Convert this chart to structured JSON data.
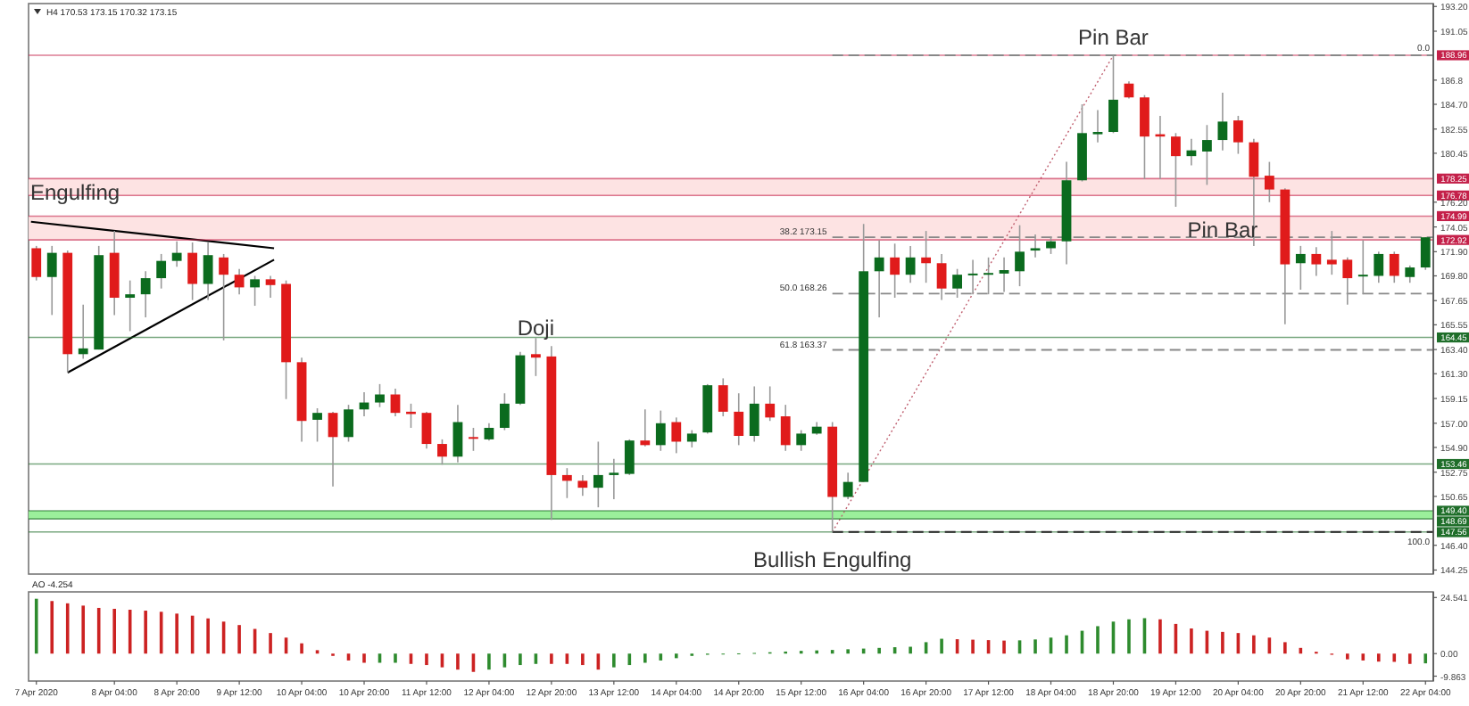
{
  "chart_data": [
    {
      "type": "candlestick",
      "title": "H4 170.53 173.15 170.32 173.15",
      "categories": [
        null,
        null,
        null,
        null,
        null,
        null,
        null,
        null,
        null,
        null,
        null,
        null,
        null,
        null,
        null,
        null,
        null,
        null,
        null,
        null,
        null,
        null,
        null,
        null,
        null,
        null,
        null,
        null,
        null,
        null,
        null,
        null,
        null,
        null,
        null,
        null,
        null,
        null,
        null,
        null,
        null,
        null,
        null,
        null,
        null,
        null,
        null,
        null,
        null,
        null,
        null,
        null,
        null,
        null,
        null,
        null,
        null,
        null,
        null,
        null,
        null,
        null,
        null,
        null,
        null,
        null,
        null,
        null,
        null,
        null,
        null,
        null,
        null,
        null,
        null,
        null,
        null,
        null,
        null,
        null,
        null,
        null,
        null,
        null,
        null,
        null,
        null,
        null,
        null,
        null
      ],
      "ohlc": [
        [
          172.2,
          172.4,
          169.4,
          169.7
        ],
        [
          169.7,
          172.4,
          166.4,
          171.8
        ],
        [
          171.8,
          172.0,
          161.4,
          163.0
        ],
        [
          163.0,
          167.3,
          162.6,
          163.5
        ],
        [
          163.4,
          172.4,
          163.4,
          171.6
        ],
        [
          171.8,
          173.7,
          166.4,
          167.9
        ],
        [
          167.9,
          169.4,
          165.0,
          168.2
        ],
        [
          168.2,
          170.2,
          166.2,
          169.6
        ],
        [
          169.6,
          171.7,
          168.7,
          171.1
        ],
        [
          171.1,
          172.8,
          170.6,
          171.8
        ],
        [
          171.8,
          172.7,
          167.7,
          169.1
        ],
        [
          169.1,
          172.7,
          167.7,
          171.6
        ],
        [
          171.4,
          171.7,
          164.2,
          169.9
        ],
        [
          169.9,
          170.4,
          168.2,
          168.8
        ],
        [
          168.8,
          169.8,
          167.2,
          169.5
        ],
        [
          169.5,
          169.8,
          167.9,
          169.0
        ],
        [
          169.1,
          169.4,
          159.1,
          162.3
        ],
        [
          162.3,
          162.7,
          155.4,
          157.2
        ],
        [
          157.3,
          158.3,
          155.4,
          157.9
        ],
        [
          157.9,
          158.0,
          151.5,
          155.8
        ],
        [
          155.8,
          158.6,
          155.4,
          158.2
        ],
        [
          158.2,
          159.7,
          157.6,
          158.8
        ],
        [
          158.8,
          160.4,
          158.4,
          159.5
        ],
        [
          159.5,
          160.0,
          157.6,
          157.9
        ],
        [
          158.0,
          158.7,
          156.6,
          157.8
        ],
        [
          157.9,
          158.0,
          154.8,
          155.2
        ],
        [
          155.2,
          155.6,
          153.4,
          154.1
        ],
        [
          154.1,
          158.6,
          153.6,
          157.1
        ],
        [
          155.8,
          156.6,
          154.6,
          155.7
        ],
        [
          155.6,
          157.0,
          155.5,
          156.6
        ],
        [
          156.6,
          159.6,
          156.4,
          158.7
        ],
        [
          158.7,
          163.2,
          158.6,
          162.9
        ],
        [
          163.0,
          164.4,
          161.1,
          162.7
        ],
        [
          162.8,
          163.7,
          148.6,
          152.5
        ],
        [
          152.5,
          153.1,
          150.5,
          152.0
        ],
        [
          152.0,
          152.5,
          150.7,
          151.4
        ],
        [
          151.4,
          155.4,
          149.7,
          152.5
        ],
        [
          152.5,
          153.9,
          150.4,
          152.7
        ],
        [
          152.6,
          155.6,
          152.5,
          155.5
        ],
        [
          155.5,
          158.2,
          155.0,
          155.1
        ],
        [
          155.1,
          158.1,
          154.6,
          157.0
        ],
        [
          157.1,
          157.5,
          154.4,
          155.4
        ],
        [
          155.4,
          156.4,
          154.9,
          156.1
        ],
        [
          156.2,
          160.4,
          156.1,
          160.3
        ],
        [
          160.3,
          160.9,
          157.6,
          158.0
        ],
        [
          158.0,
          159.6,
          155.1,
          155.9
        ],
        [
          155.9,
          160.2,
          155.4,
          158.7
        ],
        [
          158.7,
          160.2,
          157.2,
          157.5
        ],
        [
          157.6,
          158.6,
          154.6,
          155.1
        ],
        [
          155.1,
          156.4,
          154.6,
          156.1
        ],
        [
          156.1,
          157.1,
          156.0,
          156.7
        ],
        [
          156.7,
          157.1,
          147.56,
          150.6
        ],
        [
          150.6,
          152.7,
          150.4,
          151.9
        ],
        [
          151.9,
          174.3,
          151.9,
          170.2
        ],
        [
          170.2,
          172.9,
          166.2,
          171.4
        ],
        [
          171.4,
          172.6,
          167.9,
          169.9
        ],
        [
          169.9,
          172.4,
          169.2,
          171.4
        ],
        [
          171.4,
          173.7,
          169.2,
          170.9
        ],
        [
          170.9,
          171.7,
          167.7,
          168.7
        ],
        [
          168.7,
          170.4,
          167.9,
          169.9
        ],
        [
          169.9,
          171.2,
          168.2,
          170.0
        ],
        [
          169.95,
          171.4,
          168.2,
          170.05
        ],
        [
          170.0,
          171.4,
          168.4,
          170.3
        ],
        [
          170.2,
          174.2,
          168.9,
          171.9
        ],
        [
          172.0,
          173.4,
          171.4,
          172.2
        ],
        [
          172.2,
          173.2,
          171.7,
          172.8
        ],
        [
          172.8,
          179.7,
          170.8,
          178.1
        ],
        [
          178.1,
          184.7,
          178.0,
          182.2
        ],
        [
          182.1,
          184.2,
          181.4,
          182.3
        ],
        [
          182.3,
          188.96,
          182.2,
          185.1
        ],
        [
          186.5,
          186.7,
          185.2,
          185.3
        ],
        [
          185.3,
          185.5,
          178.2,
          181.9
        ],
        [
          182.1,
          183.7,
          178.2,
          181.9
        ],
        [
          181.9,
          182.2,
          175.8,
          180.2
        ],
        [
          180.2,
          181.7,
          179.4,
          180.7
        ],
        [
          180.6,
          182.9,
          177.7,
          181.6
        ],
        [
          181.6,
          185.7,
          180.7,
          183.2
        ],
        [
          183.3,
          183.7,
          180.4,
          181.4
        ],
        [
          181.4,
          181.7,
          172.4,
          178.4
        ],
        [
          178.5,
          179.7,
          176.2,
          177.3
        ],
        [
          177.3,
          177.4,
          165.6,
          170.8
        ],
        [
          170.9,
          172.4,
          168.6,
          171.7
        ],
        [
          171.7,
          172.3,
          169.8,
          170.8
        ],
        [
          171.2,
          173.7,
          169.9,
          170.8
        ],
        [
          171.2,
          171.4,
          167.3,
          169.6
        ],
        [
          169.8,
          172.9,
          168.2,
          169.9
        ],
        [
          169.8,
          171.9,
          169.2,
          171.7
        ],
        [
          171.7,
          171.9,
          169.2,
          169.8
        ],
        [
          169.7,
          170.7,
          169.2,
          170.53
        ],
        [
          170.53,
          173.15,
          170.32,
          173.15
        ]
      ],
      "ylim": [
        143.9,
        193.45
      ],
      "yticks": [
        {
          "value": 193.2,
          "label": "193.20"
        },
        191.05,
        186.8,
        {
          "value": 184.7,
          "label": "184.70"
        },
        182.55,
        180.45,
        {
          "value": 176.2,
          "label": "176.20"
        },
        174.05,
        {
          "value": 171.9,
          "label": "171.90"
        },
        {
          "value": 169.8,
          "label": "169.80"
        },
        167.65,
        165.55,
        {
          "value": 163.4,
          "label": "163.40"
        },
        {
          "value": 161.3,
          "label": "161.30"
        },
        159.15,
        {
          "value": 157,
          "label": "157.00"
        },
        {
          "value": 154.9,
          "label": "154.90"
        },
        152.75,
        150.65,
        {
          "value": 146.4,
          "label": "146.40"
        },
        144.25
      ],
      "bands": [
        {
          "axis": "y",
          "from": 176.78,
          "to": 178.25,
          "color": "#fde0e0"
        },
        {
          "axis": "y",
          "from": 172.92,
          "to": 174.99,
          "color": "#fde0e0"
        },
        {
          "axis": "y",
          "from": 148.69,
          "to": 149.4,
          "color": "#90ee90"
        }
      ],
      "ref_lines": [
        {
          "axis": "y",
          "value": 188.96,
          "label": "188.96",
          "color": "#c4214a",
          "line_style": "solid"
        },
        {
          "axis": "y",
          "value": 178.25,
          "label": "178.25",
          "color": "#c4214a",
          "line_style": "solid"
        },
        {
          "axis": "y",
          "value": 176.78,
          "label": "176.78",
          "color": "#c4214a",
          "line_style": "solid"
        },
        {
          "axis": "y",
          "value": 174.99,
          "label": "174.99",
          "color": "#c4214a",
          "line_style": "solid"
        },
        {
          "axis": "y",
          "value": 172.92,
          "label": "172.92",
          "color": "#c4214a",
          "line_style": "solid"
        },
        {
          "axis": "y",
          "value": 164.45,
          "label": "164.45",
          "color": "#1f6e2a",
          "line_style": "solid"
        },
        {
          "axis": "y",
          "value": 153.46,
          "label": "153.46",
          "color": "#1f6e2a",
          "line_style": "solid"
        },
        {
          "axis": "y",
          "value": 149.4,
          "label": "149.40",
          "color": "#1f6e2a",
          "line_style": "solid"
        },
        {
          "axis": "y",
          "value": 148.69,
          "label": "148.69",
          "color": "#1f6e2a",
          "line_style": "solid"
        },
        {
          "axis": "y",
          "value": 147.56,
          "label": "147.56",
          "color": "#1f6e2a",
          "line_style": "solid"
        },
        {
          "axis": "y",
          "value": 188.96,
          "color": "#888888",
          "line_style": "dashed"
        },
        {
          "axis": "y",
          "value": 173.15,
          "label": "38.2 173.15",
          "color": "#888888",
          "line_style": "dashed"
        },
        {
          "axis": "y",
          "value": 168.26,
          "label": "50.0 168.26",
          "color": "#888888",
          "line_style": "dashed"
        },
        {
          "axis": "y",
          "value": 163.37,
          "label": "61.8 163.37",
          "color": "#888888",
          "line_style": "dashed"
        },
        {
          "axis": "y",
          "value": 147.56,
          "color": "#222222",
          "line_style": "dashed"
        }
      ],
      "annotations": [
        "Engulfing",
        "Doji",
        "Pin Bar",
        "Pin Bar",
        "Bullish Engulfing",
        "0.0",
        "100.0"
      ],
      "tick_labels": "y",
      "grid": false
    },
    {
      "type": "bar",
      "title": "AO -4.254",
      "categories": [
        "7 Apr 2020",
        null,
        null,
        null,
        null,
        "8 Apr 04:00",
        null,
        null,
        null,
        "8 Apr 20:00",
        null,
        null,
        null,
        "9 Apr 12:00",
        null,
        null,
        null,
        "10 Apr 04:00",
        null,
        null,
        null,
        "10 Apr 20:00",
        null,
        null,
        null,
        "11 Apr 12:00",
        null,
        null,
        null,
        "12 Apr 04:00",
        null,
        null,
        null,
        "12 Apr 20:00",
        null,
        null,
        null,
        "13 Apr 12:00",
        null,
        null,
        null,
        "14 Apr 04:00",
        null,
        null,
        null,
        "14 Apr 20:00",
        null,
        null,
        null,
        "15 Apr 12:00",
        null,
        null,
        null,
        "16 Apr 04:00",
        null,
        null,
        null,
        "16 Apr 20:00",
        null,
        null,
        null,
        "17 Apr 12:00",
        null,
        null,
        null,
        "18 Apr 04:00",
        null,
        null,
        null,
        "18 Apr 20:00",
        null,
        null,
        null,
        "19 Apr 12:00",
        null,
        null,
        null,
        "20 Apr 04:00",
        null,
        null,
        null,
        "20 Apr 20:00",
        null,
        null,
        null,
        "21 Apr 12:00",
        null,
        null,
        null,
        "22 Apr 04:00"
      ],
      "values": [
        24.0,
        23.0,
        22.0,
        21.0,
        20.0,
        19.6,
        19.2,
        18.8,
        18.3,
        17.5,
        16.6,
        15.4,
        14.0,
        12.5,
        10.8,
        9.0,
        7.0,
        4.5,
        1.5,
        -1,
        -3,
        -4,
        -4,
        -4,
        -4.5,
        -5,
        -6,
        -7,
        -8,
        -7,
        -6,
        -5,
        -4.5,
        -4.5,
        -4.5,
        -5,
        -7,
        -6,
        -5,
        -4,
        -3,
        -2,
        -1,
        -0.5,
        -0.3,
        0.1,
        0.3,
        0.6,
        0.9,
        1.2,
        1.4,
        1.6,
        1.9,
        2.2,
        2.5,
        2.8,
        3,
        5,
        6.5,
        6.3,
        6.1,
        5.9,
        5.7,
        5.8,
        6.2,
        7,
        8,
        10,
        12,
        14,
        15,
        15.5,
        15,
        13,
        11,
        10,
        9.5,
        9,
        8,
        7,
        5,
        2.5,
        0.8,
        -0.5,
        -2.5,
        -3,
        -3.5,
        -3.6,
        -4.5,
        -4.254
      ],
      "colors": [
        "#2e8b2e",
        "#cc2222",
        "#cc2222",
        "#cc2222",
        "#cc2222",
        "#cc2222",
        "#cc2222",
        "#cc2222",
        "#cc2222",
        "#cc2222",
        "#cc2222",
        "#cc2222",
        "#cc2222",
        "#cc2222",
        "#cc2222",
        "#cc2222",
        "#cc2222",
        "#cc2222",
        "#cc2222",
        "#cc2222",
        "#cc2222",
        "#cc2222",
        "#2e8b2e",
        "#2e8b2e",
        "#cc2222",
        "#cc2222",
        "#cc2222",
        "#cc2222",
        "#cc2222",
        "#2e8b2e",
        "#2e8b2e",
        "#2e8b2e",
        "#2e8b2e",
        "#cc2222",
        "#cc2222",
        "#cc2222",
        "#cc2222",
        "#2e8b2e",
        "#2e8b2e",
        "#2e8b2e",
        "#2e8b2e",
        "#2e8b2e",
        "#2e8b2e",
        "#2e8b2e",
        "#2e8b2e",
        "#2e8b2e",
        "#2e8b2e",
        "#2e8b2e",
        "#2e8b2e",
        "#2e8b2e",
        "#2e8b2e",
        "#2e8b2e",
        "#2e8b2e",
        "#2e8b2e",
        "#2e8b2e",
        "#2e8b2e",
        "#2e8b2e",
        "#2e8b2e",
        "#2e8b2e",
        "#cc2222",
        "#cc2222",
        "#cc2222",
        "#cc2222",
        "#2e8b2e",
        "#2e8b2e",
        "#2e8b2e",
        "#2e8b2e",
        "#2e8b2e",
        "#2e8b2e",
        "#2e8b2e",
        "#2e8b2e",
        "#2e8b2e",
        "#cc2222",
        "#cc2222",
        "#cc2222",
        "#cc2222",
        "#cc2222",
        "#cc2222",
        "#cc2222",
        "#cc2222",
        "#cc2222",
        "#cc2222",
        "#cc2222",
        "#cc2222",
        "#cc2222",
        "#cc2222",
        "#cc2222",
        "#cc2222",
        "#cc2222",
        "#2e8b2e"
      ],
      "ylim": [
        -12,
        27
      ],
      "yticks": [
        24.541,
        {
          "value": 0,
          "label": "0.00"
        },
        -9.863
      ],
      "grid": false
    }
  ]
}
